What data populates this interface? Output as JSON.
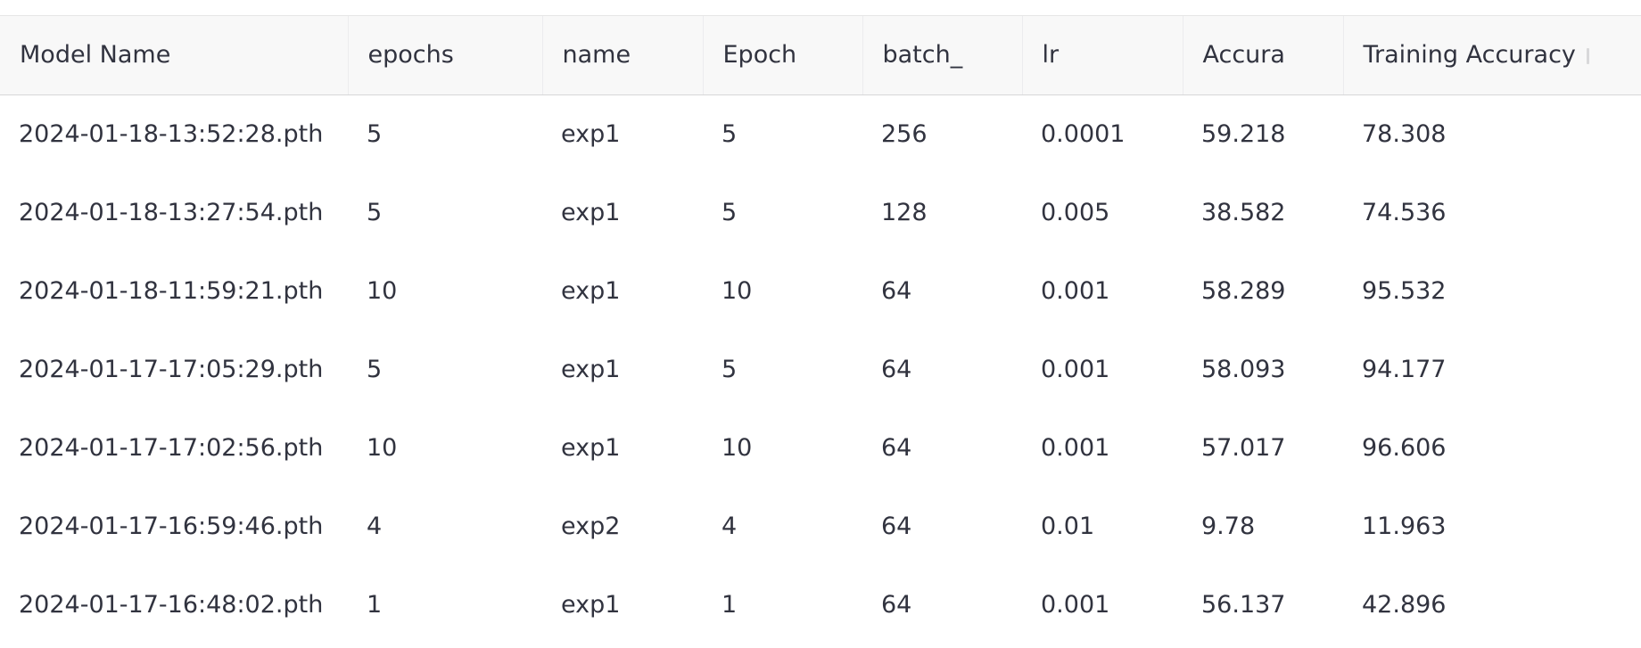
{
  "table": {
    "columns": [
      "Model Name",
      "epochs",
      "name",
      "Epoch",
      "batch_",
      "lr",
      "Accura",
      "Training Accuracy"
    ],
    "rows": [
      [
        "2024-01-18-13:52:28.pth",
        "5",
        "exp1",
        "5",
        "256",
        "0.0001",
        "59.218",
        "78.308"
      ],
      [
        "2024-01-18-13:27:54.pth",
        "5",
        "exp1",
        "5",
        "128",
        "0.005",
        "38.582",
        "74.536"
      ],
      [
        "2024-01-18-11:59:21.pth",
        "10",
        "exp1",
        "10",
        "64",
        "0.001",
        "58.289",
        "95.532"
      ],
      [
        "2024-01-17-17:05:29.pth",
        "5",
        "exp1",
        "5",
        "64",
        "0.001",
        "58.093",
        "94.177"
      ],
      [
        "2024-01-17-17:02:56.pth",
        "10",
        "exp1",
        "10",
        "64",
        "0.001",
        "57.017",
        "96.606"
      ],
      [
        "2024-01-17-16:59:46.pth",
        "4",
        "exp2",
        "4",
        "64",
        "0.01",
        "9.78",
        "11.963"
      ],
      [
        "2024-01-17-16:48:02.pth",
        "1",
        "exp1",
        "1",
        "64",
        "0.001",
        "56.137",
        "42.896"
      ]
    ]
  }
}
